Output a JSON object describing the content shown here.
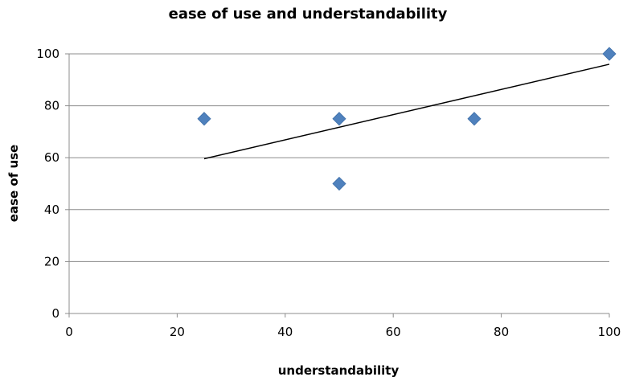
{
  "chart_data": {
    "type": "scatter",
    "title": "ease of use and understandability",
    "xlabel": "understandability",
    "ylabel": "ease of use",
    "xlim": [
      0,
      100
    ],
    "ylim": [
      0,
      100
    ],
    "x_ticks": [
      "0",
      "20",
      "40",
      "60",
      "80",
      "100"
    ],
    "y_ticks": [
      "0",
      "20",
      "40",
      "60",
      "80",
      "100"
    ],
    "grid": "horizontal",
    "legend": "none",
    "marker": "diamond",
    "marker_color": "#4f81bd",
    "trendline_color": "#000000",
    "points": [
      {
        "x": 25,
        "y": 75
      },
      {
        "x": 50,
        "y": 75
      },
      {
        "x": 50,
        "y": 50
      },
      {
        "x": 75,
        "y": 75
      },
      {
        "x": 100,
        "y": 100
      }
    ],
    "trendline": {
      "type": "linear",
      "from": {
        "x": 25,
        "y": 59.6
      },
      "to": {
        "x": 100,
        "y": 96
      }
    }
  }
}
